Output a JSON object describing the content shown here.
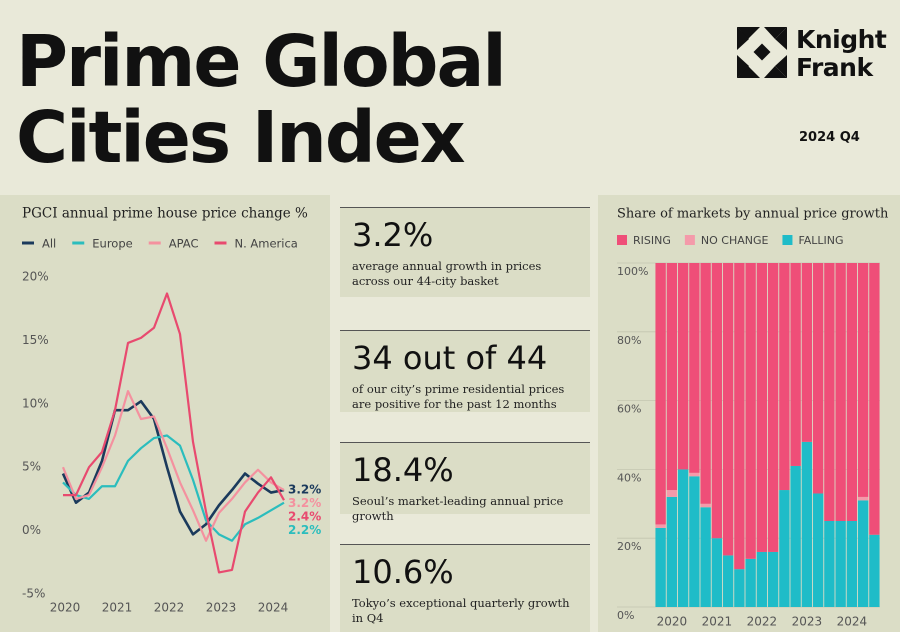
{
  "header": {
    "title_lines": [
      "Prime Global",
      "Cities Index"
    ],
    "logo_lines": [
      "Knight",
      "Frank"
    ],
    "period": "2024 Q4"
  },
  "stats": [
    {
      "headline": "3.2%",
      "text": "average annual growth in prices across our 44-city basket"
    },
    {
      "headline": "34 out of 44",
      "text": "of our city’s prime residential prices are positive for the past 12 months"
    },
    {
      "headline": "18.4%",
      "text": "Seoul’s market-leading annual price growth"
    },
    {
      "headline": "10.6%",
      "text": "Tokyo’s exceptional quarterly growth in Q4"
    }
  ],
  "chart_data": [
    {
      "type": "line",
      "title": "PGCI annual prime house price change %",
      "categories": [
        "2020",
        null,
        null,
        null,
        "2021",
        null,
        null,
        null,
        "2022",
        null,
        null,
        null,
        "2023",
        null,
        null,
        null,
        "2024",
        null
      ],
      "series": [
        {
          "name": "All",
          "color": "#1b3a5c",
          "values": [
            4.5,
            2.2,
            3.0,
            5.5,
            9.5,
            9.5,
            10.2,
            8.8,
            5.0,
            1.5,
            -0.3,
            0.5,
            2.0,
            3.2,
            4.5,
            3.7,
            3.0,
            3.2
          ],
          "value_labels": [
            null,
            null,
            null,
            null,
            null,
            null,
            null,
            null,
            null,
            null,
            null,
            null,
            null,
            null,
            null,
            null,
            null,
            "3.2%"
          ]
        },
        {
          "name": "Europe",
          "color": "#2bbdbd",
          "values": [
            3.8,
            2.8,
            2.5,
            3.5,
            3.5,
            5.5,
            6.5,
            7.3,
            7.5,
            6.7,
            4.0,
            0.8,
            -0.3,
            -0.8,
            0.5,
            1.0,
            1.6,
            2.2
          ],
          "value_labels": [
            null,
            null,
            null,
            null,
            null,
            null,
            null,
            null,
            null,
            null,
            null,
            null,
            null,
            null,
            null,
            null,
            null,
            "2.2%"
          ]
        },
        {
          "name": "APAC",
          "color": "#f4919f",
          "values": [
            5.0,
            2.5,
            2.8,
            5.0,
            7.5,
            11.0,
            8.8,
            9.0,
            6.5,
            3.8,
            1.6,
            -0.8,
            1.4,
            2.5,
            3.8,
            4.8,
            3.8,
            3.2
          ],
          "value_labels": [
            null,
            null,
            null,
            null,
            null,
            null,
            null,
            null,
            null,
            null,
            null,
            null,
            null,
            null,
            null,
            null,
            null,
            "3.2%"
          ]
        },
        {
          "name": "N. America",
          "color": "#e84a6f",
          "values": [
            2.8,
            2.8,
            5.0,
            6.2,
            9.5,
            14.8,
            15.2,
            16.0,
            18.7,
            15.5,
            7.0,
            1.5,
            -3.3,
            -3.1,
            1.5,
            3.0,
            4.2,
            2.4
          ],
          "value_labels": [
            null,
            null,
            null,
            null,
            null,
            null,
            null,
            null,
            null,
            null,
            null,
            null,
            null,
            null,
            null,
            null,
            null,
            "2.4%"
          ]
        }
      ],
      "ylim": [
        -5,
        20
      ],
      "yticks": [
        {
          "value": 20,
          "label": "20%"
        },
        {
          "value": 15,
          "label": "15%"
        },
        {
          "value": 10,
          "label": "10%"
        },
        {
          "value": 5,
          "label": "5%"
        },
        {
          "value": 0,
          "label": "0%"
        },
        {
          "value": -5,
          "label": "-5%"
        }
      ],
      "grid": false
    },
    {
      "type": "stacked_bar",
      "title": "Share of markets by annual price growth",
      "categories": [
        null,
        "2020",
        null,
        null,
        null,
        "2021",
        null,
        null,
        null,
        "2022",
        null,
        null,
        null,
        "2023",
        null,
        null,
        null,
        "2024",
        null,
        null
      ],
      "series": [
        {
          "name": "RISING",
          "color": "#ef4e78",
          "values": [
            76,
            66,
            60,
            61,
            70,
            80,
            85,
            89,
            86,
            84,
            84,
            66,
            59,
            52,
            67,
            75,
            75,
            75,
            68,
            79
          ]
        },
        {
          "name": "NO CHANGE",
          "color": "#f49aaa",
          "values": [
            1,
            2,
            0,
            1,
            1,
            0,
            0,
            0,
            0,
            0,
            0,
            0,
            0,
            0,
            0,
            0,
            0,
            0,
            1,
            0
          ]
        },
        {
          "name": "FALLING",
          "color": "#1fbcc8",
          "values": [
            23,
            32,
            40,
            38,
            29,
            20,
            15,
            11,
            14,
            16,
            16,
            34,
            41,
            48,
            33,
            25,
            25,
            25,
            31,
            21
          ]
        }
      ],
      "ylim": [
        0,
        100
      ],
      "yticks": [
        {
          "value": 0,
          "label": "0%"
        },
        {
          "value": 20,
          "label": "20%"
        },
        {
          "value": 40,
          "label": "40%"
        },
        {
          "value": 60,
          "label": "60%"
        },
        {
          "value": 80,
          "label": "80%"
        },
        {
          "value": 100,
          "label": "100%"
        }
      ],
      "grid": true
    }
  ]
}
